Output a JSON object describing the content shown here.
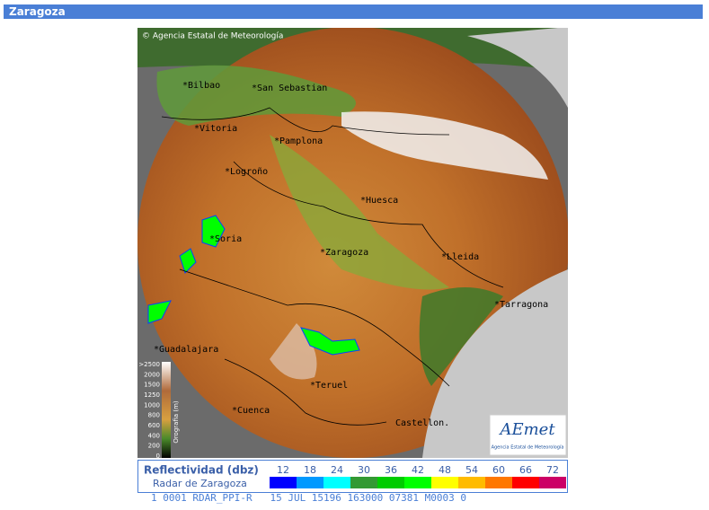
{
  "header": {
    "title": "Zaragoza"
  },
  "map": {
    "credit": "© Agencia Estatal de Meteorología",
    "cities": [
      "*Bilbao",
      "*San Sebastian",
      "*Vitoria",
      "*Pamplona",
      "*Logroño",
      "*Huesca",
      "*Soria",
      "*Zaragoza",
      "*Lleida",
      "*Tarragona",
      "*Guadalajara",
      "*Teruel",
      "*Cuenca",
      "Castellon."
    ],
    "orography": {
      "title": "Orografia (m)",
      "labels": [
        ">2500",
        "2000",
        "1500",
        "1250",
        "1000",
        "800",
        "600",
        "400",
        "200",
        "0"
      ]
    },
    "logo": {
      "name": "AEmet",
      "subtitle": "Agencia Estatal de Meteorología"
    }
  },
  "legend": {
    "title": "Reflectividad (dbz)",
    "subtitle": "Radar de Zaragoza",
    "levels": [
      12,
      18,
      24,
      30,
      36,
      42,
      48,
      54,
      60,
      66,
      72
    ],
    "colors": [
      "#0000ff",
      "#0099ff",
      "#00ffff",
      "#339933",
      "#00cc00",
      "#00ff00",
      "#ffff00",
      "#ffbb00",
      "#ff7700",
      "#ff0000",
      "#cc0066"
    ]
  },
  "status": "1 0001 RDAR_PPI-R   15 JUL 15196 163000 07381 M0003 0"
}
